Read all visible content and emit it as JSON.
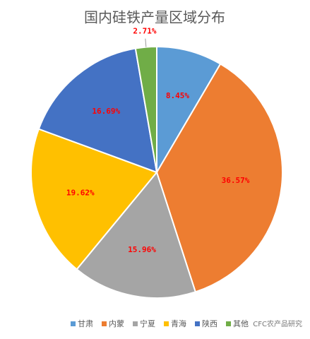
{
  "chart_data": {
    "type": "pie",
    "title": "国内硅铁产量区域分布",
    "categories": [
      "甘肃",
      "内蒙",
      "宁夏",
      "青海",
      "陕西",
      "其他"
    ],
    "values": [
      8.45,
      36.57,
      15.96,
      19.62,
      16.69,
      2.71
    ],
    "value_labels": [
      "8.45%",
      "36.57%",
      "15.96%",
      "19.62%",
      "16.69%",
      "2.71%"
    ],
    "colors": [
      "#5b9bd5",
      "#ed7d31",
      "#a5a5a5",
      "#ffc000",
      "#4472c4",
      "#70ad47"
    ],
    "legend": "bottom"
  },
  "watermark": "CFC农产品研究"
}
